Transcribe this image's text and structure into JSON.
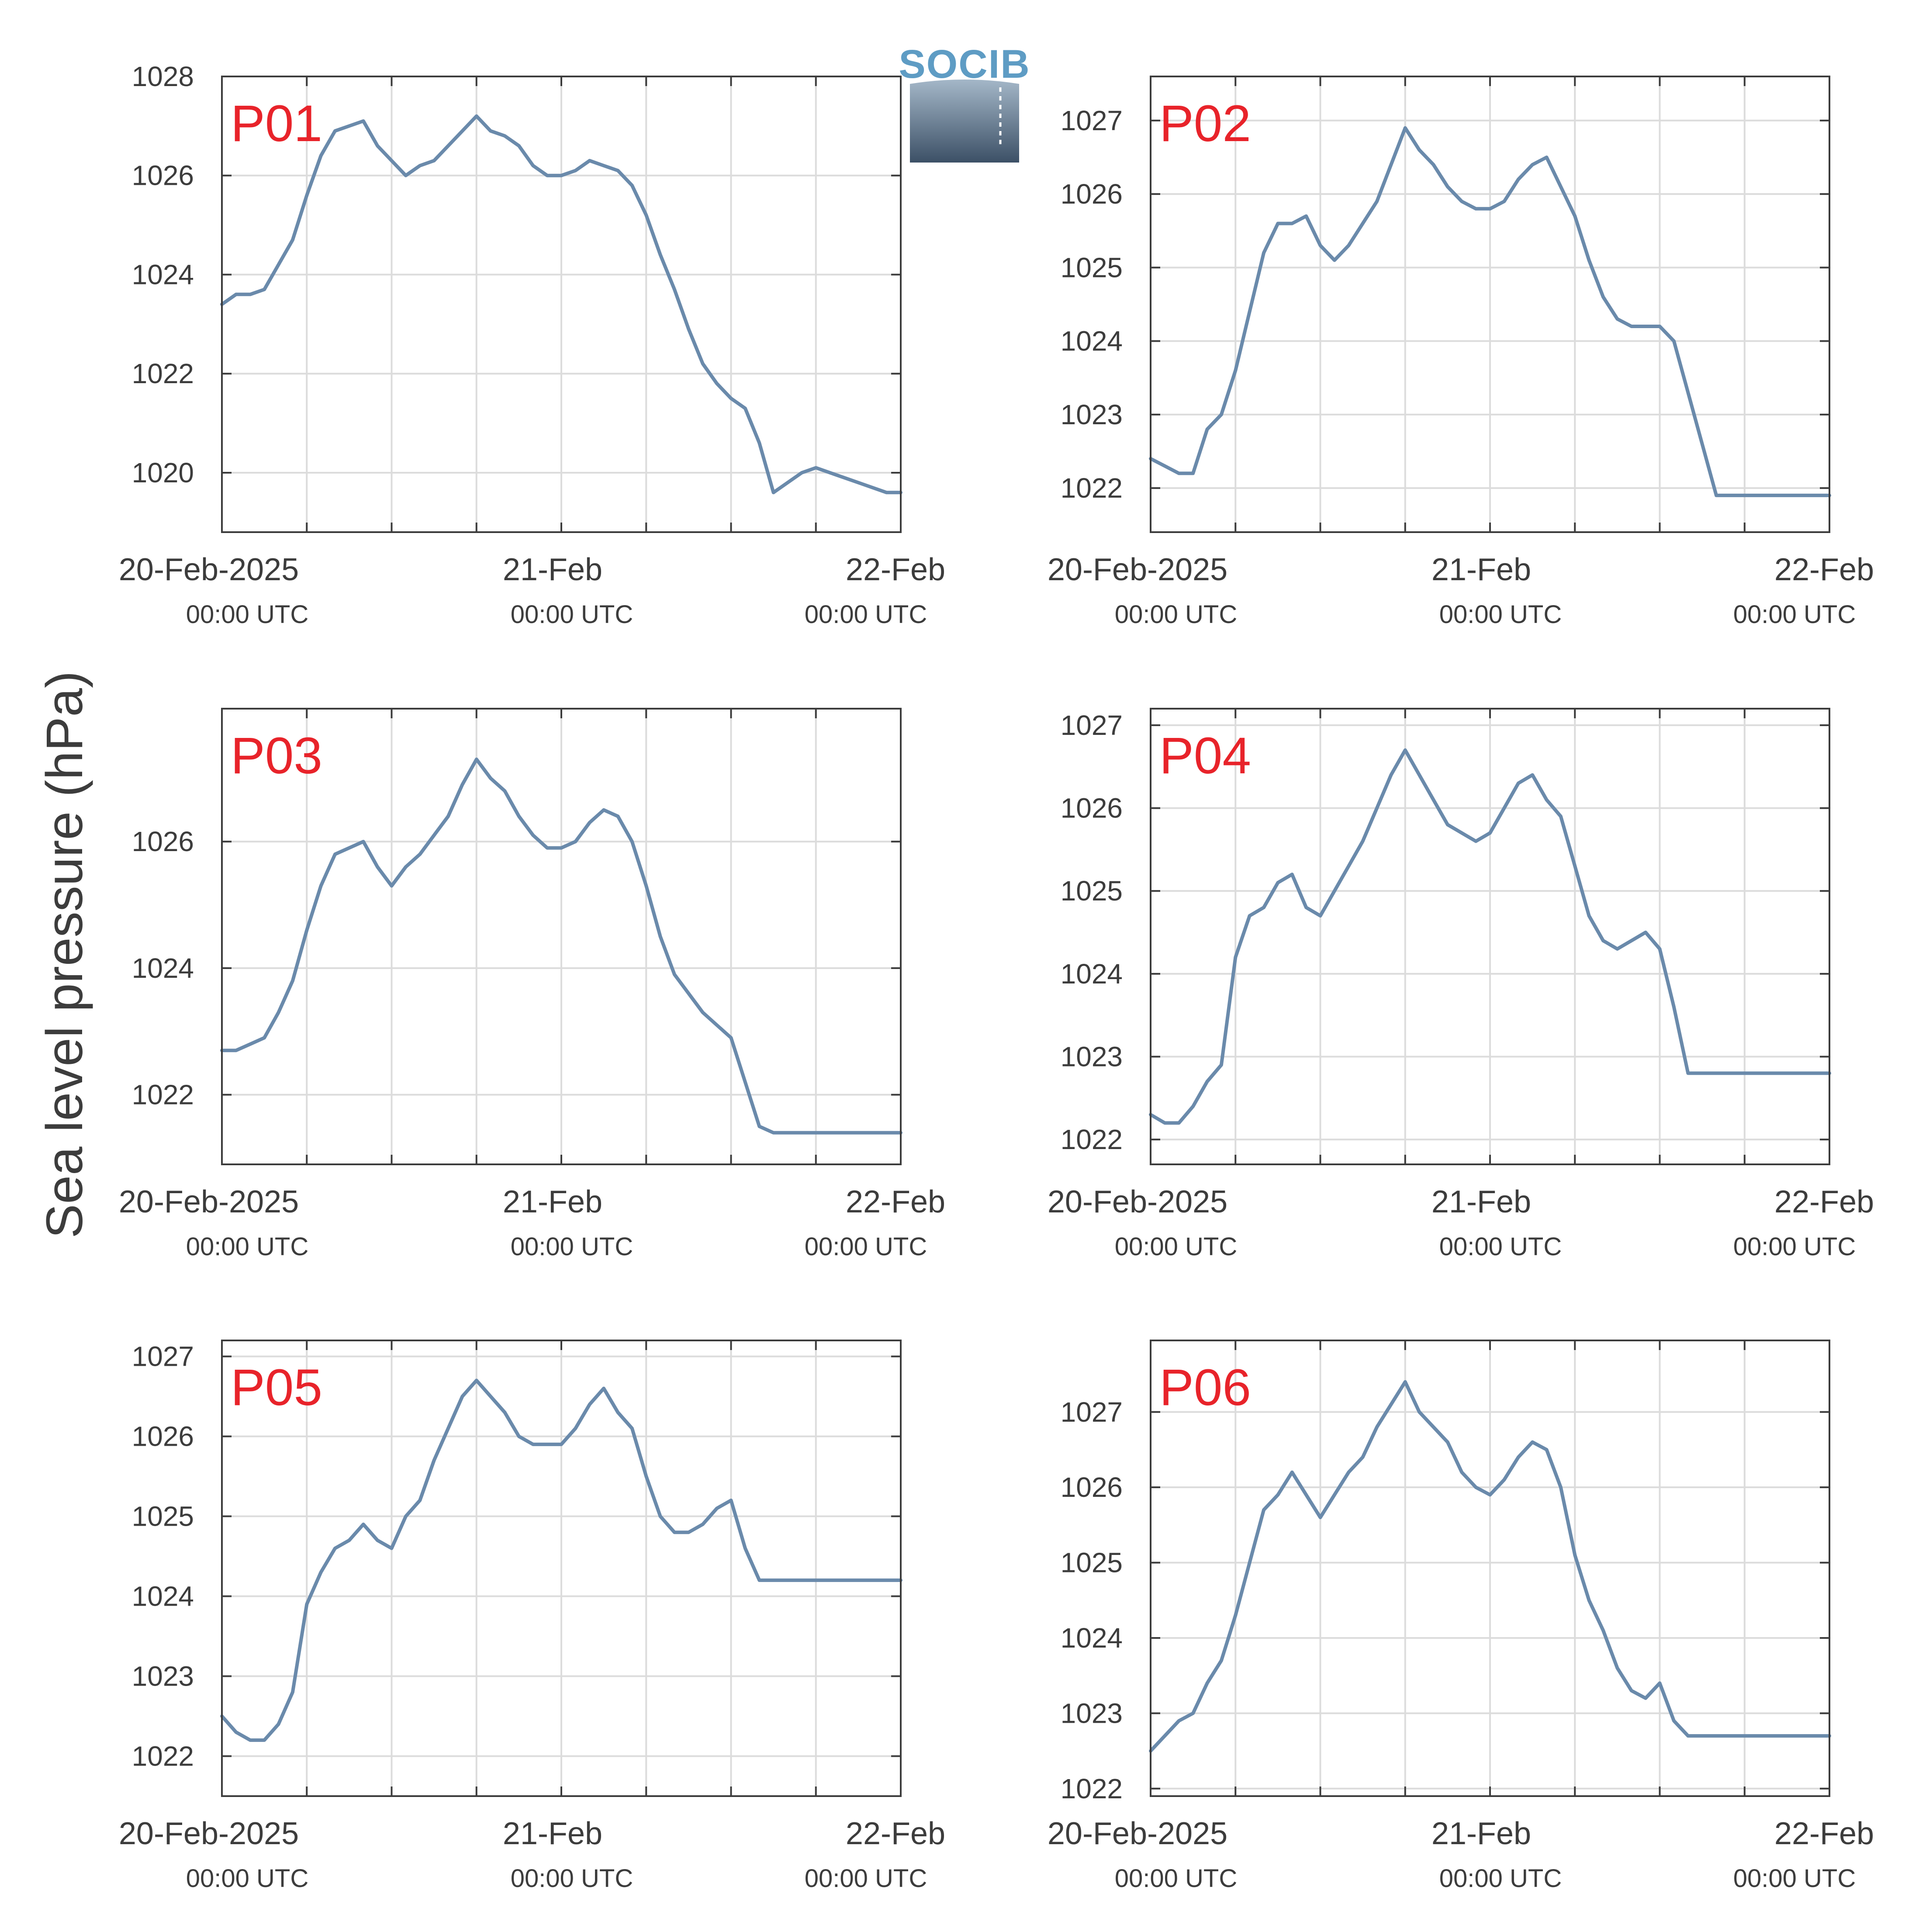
{
  "figure": {
    "ylabel": "Sea level pressure (hPa)",
    "logo": {
      "text": "SOCIB"
    },
    "colors": {
      "line": "#6a8aab",
      "title": "#e8232a",
      "grid": "#dcdcdc",
      "axis": "#3c3c3c"
    }
  },
  "chart_data": [
    {
      "type": "line",
      "title": "P01",
      "x_tick_dates": [
        "20-Feb-2025",
        "21-Feb",
        "22-Feb"
      ],
      "x_tick_times": [
        "00:00 UTC",
        "00:00 UTC",
        "00:00 UTC"
      ],
      "xlim": [
        0,
        48
      ],
      "ylim": [
        1018.8,
        1028
      ],
      "yticks": [
        1020,
        1022,
        1024,
        1026,
        1028
      ],
      "grid": true,
      "series": [
        {
          "x": [
            0,
            1,
            2,
            3,
            4,
            5,
            6,
            7,
            8,
            9,
            10,
            11,
            12,
            13,
            14,
            15,
            16,
            17,
            18,
            19,
            20,
            21,
            22,
            23,
            24,
            25,
            26,
            27,
            28,
            29,
            30,
            31,
            32,
            33,
            34,
            35,
            36,
            37,
            38,
            39,
            40,
            41,
            42,
            43,
            44,
            45,
            46,
            47,
            48
          ],
          "values": [
            1023.4,
            1023.6,
            1023.6,
            1023.7,
            1024.2,
            1024.7,
            1025.6,
            1026.4,
            1026.9,
            1027.0,
            1027.1,
            1026.6,
            1026.3,
            1026.0,
            1026.2,
            1026.3,
            1026.6,
            1026.9,
            1027.2,
            1026.9,
            1026.8,
            1026.6,
            1026.2,
            1026.0,
            1026.0,
            1026.1,
            1026.3,
            1026.2,
            1026.1,
            1025.8,
            1025.2,
            1024.4,
            1023.7,
            1022.9,
            1022.2,
            1021.8,
            1021.5,
            1021.3,
            1020.6,
            1019.6,
            1019.8,
            1020.0,
            1020.1,
            1020.0,
            1019.9,
            1019.8,
            1019.7,
            1019.6,
            1019.6
          ]
        }
      ]
    },
    {
      "type": "line",
      "title": "P02",
      "x_tick_dates": [
        "20-Feb-2025",
        "21-Feb",
        "22-Feb"
      ],
      "x_tick_times": [
        "00:00 UTC",
        "00:00 UTC",
        "00:00 UTC"
      ],
      "xlim": [
        0,
        48
      ],
      "ylim": [
        1021.4,
        1027.6
      ],
      "yticks": [
        1022,
        1023,
        1024,
        1025,
        1026,
        1027
      ],
      "grid": true,
      "series": [
        {
          "x": [
            0,
            1,
            2,
            3,
            4,
            5,
            6,
            7,
            8,
            9,
            10,
            11,
            12,
            13,
            14,
            15,
            16,
            17,
            18,
            19,
            20,
            21,
            22,
            23,
            24,
            25,
            26,
            27,
            28,
            29,
            30,
            31,
            32,
            33,
            34,
            35,
            36,
            37,
            38,
            39,
            40,
            41,
            42,
            43,
            44,
            45,
            46,
            47,
            48
          ],
          "values": [
            1022.4,
            1022.3,
            1022.2,
            1022.2,
            1022.8,
            1023.0,
            1023.6,
            1024.4,
            1025.2,
            1025.6,
            1025.6,
            1025.7,
            1025.3,
            1025.1,
            1025.3,
            1025.6,
            1025.9,
            1026.4,
            1026.9,
            1026.6,
            1026.4,
            1026.1,
            1025.9,
            1025.8,
            1025.8,
            1025.9,
            1026.2,
            1026.4,
            1026.5,
            1026.1,
            1025.7,
            1025.1,
            1024.6,
            1024.3,
            1024.2,
            1024.2,
            1024.2,
            1024.0,
            1023.3,
            1022.6,
            1021.9,
            1021.9,
            1021.9,
            1021.9,
            1021.9,
            1021.9,
            1021.9,
            1021.9,
            1021.9
          ]
        }
      ]
    },
    {
      "type": "line",
      "title": "P03",
      "x_tick_dates": [
        "20-Feb-2025",
        "21-Feb",
        "22-Feb"
      ],
      "x_tick_times": [
        "00:00 UTC",
        "00:00 UTC",
        "00:00 UTC"
      ],
      "xlim": [
        0,
        48
      ],
      "ylim": [
        1020.9,
        1028.1
      ],
      "yticks": [
        1022,
        1024,
        1026
      ],
      "grid": true,
      "series": [
        {
          "x": [
            0,
            1,
            2,
            3,
            4,
            5,
            6,
            7,
            8,
            9,
            10,
            11,
            12,
            13,
            14,
            15,
            16,
            17,
            18,
            19,
            20,
            21,
            22,
            23,
            24,
            25,
            26,
            27,
            28,
            29,
            30,
            31,
            32,
            33,
            34,
            35,
            36,
            37,
            38,
            39,
            40,
            41,
            42,
            43,
            44,
            45,
            46,
            47,
            48
          ],
          "values": [
            1022.7,
            1022.7,
            1022.8,
            1022.9,
            1023.3,
            1023.8,
            1024.6,
            1025.3,
            1025.8,
            1025.9,
            1026.0,
            1025.6,
            1025.3,
            1025.6,
            1025.8,
            1026.1,
            1026.4,
            1026.9,
            1027.3,
            1027.0,
            1026.8,
            1026.4,
            1026.1,
            1025.9,
            1025.9,
            1026.0,
            1026.3,
            1026.5,
            1026.4,
            1026.0,
            1025.3,
            1024.5,
            1023.9,
            1023.6,
            1023.3,
            1023.1,
            1022.9,
            1022.2,
            1021.5,
            1021.4,
            1021.4,
            1021.4,
            1021.4,
            1021.4,
            1021.4,
            1021.4,
            1021.4,
            1021.4,
            1021.4
          ]
        }
      ]
    },
    {
      "type": "line",
      "title": "P04",
      "x_tick_dates": [
        "20-Feb-2025",
        "21-Feb",
        "22-Feb"
      ],
      "x_tick_times": [
        "00:00 UTC",
        "00:00 UTC",
        "00:00 UTC"
      ],
      "xlim": [
        0,
        48
      ],
      "ylim": [
        1021.7,
        1027.2
      ],
      "yticks": [
        1022,
        1023,
        1024,
        1025,
        1026,
        1027
      ],
      "grid": true,
      "series": [
        {
          "x": [
            0,
            1,
            2,
            3,
            4,
            5,
            6,
            7,
            8,
            9,
            10,
            11,
            12,
            13,
            14,
            15,
            16,
            17,
            18,
            19,
            20,
            21,
            22,
            23,
            24,
            25,
            26,
            27,
            28,
            29,
            30,
            31,
            32,
            33,
            34,
            35,
            36,
            37,
            38,
            39,
            40,
            41,
            42,
            43,
            44,
            45,
            46,
            47,
            48
          ],
          "values": [
            1022.3,
            1022.2,
            1022.2,
            1022.4,
            1022.7,
            1022.9,
            1024.2,
            1024.7,
            1024.8,
            1025.1,
            1025.2,
            1024.8,
            1024.7,
            1025.0,
            1025.3,
            1025.6,
            1026.0,
            1026.4,
            1026.7,
            1026.4,
            1026.1,
            1025.8,
            1025.7,
            1025.6,
            1025.7,
            1026.0,
            1026.3,
            1026.4,
            1026.1,
            1025.9,
            1025.3,
            1024.7,
            1024.4,
            1024.3,
            1024.4,
            1024.5,
            1024.3,
            1023.6,
            1022.8,
            1022.8,
            1022.8,
            1022.8,
            1022.8,
            1022.8,
            1022.8,
            1022.8,
            1022.8,
            1022.8,
            1022.8
          ]
        }
      ]
    },
    {
      "type": "line",
      "title": "P05",
      "x_tick_dates": [
        "20-Feb-2025",
        "21-Feb",
        "22-Feb"
      ],
      "x_tick_times": [
        "00:00 UTC",
        "00:00 UTC",
        "00:00 UTC"
      ],
      "xlim": [
        0,
        48
      ],
      "ylim": [
        1021.5,
        1027.2
      ],
      "yticks": [
        1022,
        1023,
        1024,
        1025,
        1026,
        1027
      ],
      "grid": true,
      "series": [
        {
          "x": [
            0,
            1,
            2,
            3,
            4,
            5,
            6,
            7,
            8,
            9,
            10,
            11,
            12,
            13,
            14,
            15,
            16,
            17,
            18,
            19,
            20,
            21,
            22,
            23,
            24,
            25,
            26,
            27,
            28,
            29,
            30,
            31,
            32,
            33,
            34,
            35,
            36,
            37,
            38,
            39,
            40,
            41,
            42,
            43,
            44,
            45,
            46,
            47,
            48
          ],
          "values": [
            1022.5,
            1022.3,
            1022.2,
            1022.2,
            1022.4,
            1022.8,
            1023.9,
            1024.3,
            1024.6,
            1024.7,
            1024.9,
            1024.7,
            1024.6,
            1025.0,
            1025.2,
            1025.7,
            1026.1,
            1026.5,
            1026.7,
            1026.5,
            1026.3,
            1026.0,
            1025.9,
            1025.9,
            1025.9,
            1026.1,
            1026.4,
            1026.6,
            1026.3,
            1026.1,
            1025.5,
            1025.0,
            1024.8,
            1024.8,
            1024.9,
            1025.1,
            1025.2,
            1024.6,
            1024.2,
            1024.2,
            1024.2,
            1024.2,
            1024.2,
            1024.2,
            1024.2,
            1024.2,
            1024.2,
            1024.2,
            1024.2
          ]
        }
      ]
    },
    {
      "type": "line",
      "title": "P06",
      "x_tick_dates": [
        "20-Feb-2025",
        "21-Feb",
        "22-Feb"
      ],
      "x_tick_times": [
        "00:00 UTC",
        "00:00 UTC",
        "00:00 UTC"
      ],
      "xlim": [
        0,
        48
      ],
      "ylim": [
        1021.9,
        1027.95
      ],
      "yticks": [
        1022,
        1023,
        1024,
        1025,
        1026,
        1027
      ],
      "grid": true,
      "series": [
        {
          "x": [
            0,
            1,
            2,
            3,
            4,
            5,
            6,
            7,
            8,
            9,
            10,
            11,
            12,
            13,
            14,
            15,
            16,
            17,
            18,
            19,
            20,
            21,
            22,
            23,
            24,
            25,
            26,
            27,
            28,
            29,
            30,
            31,
            32,
            33,
            34,
            35,
            36,
            37,
            38,
            39,
            40,
            41,
            42,
            43,
            44,
            45,
            46,
            47,
            48
          ],
          "values": [
            1022.5,
            1022.7,
            1022.9,
            1023.0,
            1023.4,
            1023.7,
            1024.3,
            1025.0,
            1025.7,
            1025.9,
            1026.2,
            1025.9,
            1025.6,
            1025.9,
            1026.2,
            1026.4,
            1026.8,
            1027.1,
            1027.4,
            1027.0,
            1026.8,
            1026.6,
            1026.2,
            1026.0,
            1025.9,
            1026.1,
            1026.4,
            1026.6,
            1026.5,
            1026.0,
            1025.1,
            1024.5,
            1024.1,
            1023.6,
            1023.3,
            1023.2,
            1023.4,
            1022.9,
            1022.7,
            1022.7,
            1022.7,
            1022.7,
            1022.7,
            1022.7,
            1022.7,
            1022.7,
            1022.7,
            1022.7,
            1022.7
          ]
        }
      ]
    }
  ]
}
